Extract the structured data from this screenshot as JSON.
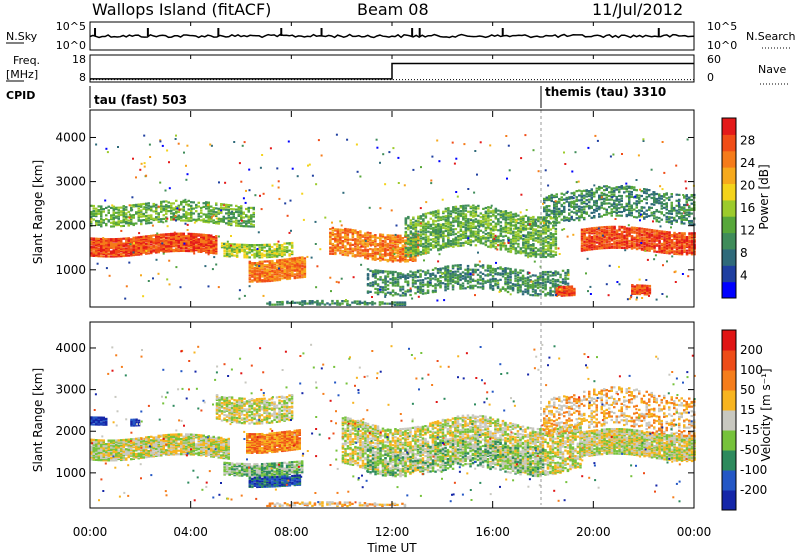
{
  "header": {
    "station": "Wallops Island (fitACF)",
    "beam": "Beam 08",
    "date": "11/Jul/2012"
  },
  "top_panels": {
    "nsky_label": "N.Sky",
    "nsky_ticks": [
      "10^5",
      "10^0"
    ],
    "nsearch_label": "N.Search",
    "nsearch_ticks": [
      "10^5",
      "10^0"
    ],
    "freq_label": "Freq.",
    "freq_unit": "[MHz]",
    "freq_ticks": [
      "18",
      "8"
    ],
    "nave_label": "Nave",
    "nave_ticks": [
      "60",
      "0"
    ],
    "cpid_label": "CPID",
    "cpid_segments": [
      {
        "label": "tau (fast) 503",
        "start_hour": 0
      },
      {
        "label": "themis (tau) 3310",
        "start_hour": 18.0
      }
    ],
    "freq_series": {
      "hours": [
        0,
        12.0,
        12.0,
        24
      ],
      "mhz": [
        8.5,
        8.5,
        15.5,
        15.5
      ]
    },
    "nave_series": {
      "hours": [
        0,
        24
      ],
      "value": [
        1,
        1
      ]
    }
  },
  "x_axis": {
    "label": "Time UT",
    "ticks": [
      "00:00",
      "04:00",
      "08:00",
      "12:00",
      "16:00",
      "20:00",
      "00:00"
    ],
    "range_hours": [
      0,
      24
    ]
  },
  "power_panel": {
    "ylabel": "Slant Range [km]",
    "yticks": [
      "4000",
      "3000",
      "2000",
      "1000"
    ],
    "ylim_km": [
      180,
      4600
    ],
    "colorbar_label": "Power [dB]",
    "colorbar_ticks": [
      "28",
      "24",
      "20",
      "16",
      "12",
      "8",
      "4"
    ],
    "colors": [
      "#0000ff",
      "#1f3fa0",
      "#2f6a7a",
      "#3f8c5a",
      "#57a73a",
      "#9ccb2c",
      "#f4d31b",
      "#f6a91c",
      "#f57b1a",
      "#f14d17",
      "#e41a1a"
    ]
  },
  "velocity_panel": {
    "ylabel": "Slant Range [km]",
    "yticks": [
      "4000",
      "3000",
      "2000",
      "1000"
    ],
    "ylim_km": [
      180,
      4600
    ],
    "colorbar_label": "Velocity [m s⁻¹]",
    "colorbar_ticks": [
      "200",
      "100",
      "50",
      "15",
      "-15",
      "-50",
      "-100",
      "-200"
    ],
    "colors": [
      "#1426a8",
      "#2457c5",
      "#2d8a5d",
      "#76c23b",
      "#c8c8c0",
      "#f7b41f",
      "#f57d1b",
      "#ee4c18",
      "#e01515"
    ]
  },
  "chart_data": {
    "type": "heatmap",
    "title": "Wallops Island (fitACF)  Beam 08  11/Jul/2012",
    "xlabel": "Time UT",
    "ylabel": "Slant Range [km]",
    "x_range_hours": [
      0,
      24
    ],
    "y_range_km": [
      180,
      4600
    ],
    "power_clusters": [
      {
        "t0": 0.0,
        "t1": 5.0,
        "r_center": 1600,
        "r_width": 420,
        "level": 9,
        "density": 0.9
      },
      {
        "t0": 0.0,
        "t1": 6.5,
        "r_center": 2300,
        "r_width": 450,
        "level": 4,
        "density": 0.5
      },
      {
        "t0": 6.3,
        "t1": 8.5,
        "r_center": 1050,
        "r_width": 450,
        "level": 8,
        "density": 0.85
      },
      {
        "t0": 5.2,
        "t1": 8.0,
        "r_center": 1500,
        "r_width": 300,
        "level": 5,
        "density": 0.6
      },
      {
        "t0": 9.5,
        "t1": 13.0,
        "r_center": 1600,
        "r_width": 600,
        "level": 8,
        "density": 0.65
      },
      {
        "t0": 12.5,
        "t1": 18.5,
        "r_center": 1900,
        "r_width": 900,
        "level": 4,
        "density": 0.55
      },
      {
        "t0": 11.0,
        "t1": 19.0,
        "r_center": 800,
        "r_width": 550,
        "level": 3,
        "density": 0.45
      },
      {
        "t0": 18.5,
        "t1": 19.2,
        "r_center": 560,
        "r_width": 200,
        "level": 9,
        "density": 0.9
      },
      {
        "t0": 21.5,
        "t1": 22.2,
        "r_center": 560,
        "r_width": 200,
        "level": 9,
        "density": 0.9
      },
      {
        "t0": 19.5,
        "t1": 24.0,
        "r_center": 1700,
        "r_width": 500,
        "level": 9,
        "density": 0.8
      },
      {
        "t0": 18.0,
        "t1": 24.0,
        "r_center": 2500,
        "r_width": 700,
        "level": 3,
        "density": 0.4
      },
      {
        "t0": 7.0,
        "t1": 12.5,
        "r_center": 250,
        "r_width": 120,
        "level": 3,
        "density": 0.55
      }
    ],
    "velocity_clusters": [
      {
        "t0": 0.0,
        "t1": 5.5,
        "r_center": 1650,
        "r_width": 500,
        "level": 4,
        "density": 0.85
      },
      {
        "t0": 0.0,
        "t1": 0.6,
        "r_center": 2300,
        "r_width": 180,
        "level": 0,
        "density": 0.9
      },
      {
        "t0": 1.6,
        "t1": 1.9,
        "r_center": 2250,
        "r_width": 150,
        "level": 0,
        "density": 0.8
      },
      {
        "t0": 5.0,
        "t1": 8.0,
        "r_center": 2600,
        "r_width": 600,
        "level": 4,
        "density": 0.6
      },
      {
        "t0": 6.2,
        "t1": 8.3,
        "r_center": 1800,
        "r_width": 450,
        "level": 6,
        "density": 0.85
      },
      {
        "t0": 5.3,
        "t1": 8.4,
        "r_center": 1150,
        "r_width": 300,
        "level": 3,
        "density": 0.85
      },
      {
        "t0": 6.3,
        "t1": 8.3,
        "r_center": 850,
        "r_width": 250,
        "level": 1,
        "density": 0.9
      },
      {
        "t0": 10.0,
        "t1": 19.5,
        "r_center": 1700,
        "r_width": 1100,
        "level": 4,
        "density": 0.55
      },
      {
        "t0": 11.0,
        "t1": 18.0,
        "r_center": 1400,
        "r_width": 700,
        "level": 3,
        "density": 0.35
      },
      {
        "t0": 19.5,
        "t1": 24.0,
        "r_center": 1700,
        "r_width": 600,
        "level": 4,
        "density": 0.85
      },
      {
        "t0": 18.0,
        "t1": 24.0,
        "r_center": 2500,
        "r_width": 900,
        "level": 5,
        "density": 0.3
      },
      {
        "t0": 7.0,
        "t1": 12.5,
        "r_center": 250,
        "r_width": 120,
        "level": 5,
        "density": 0.5
      }
    ]
  }
}
